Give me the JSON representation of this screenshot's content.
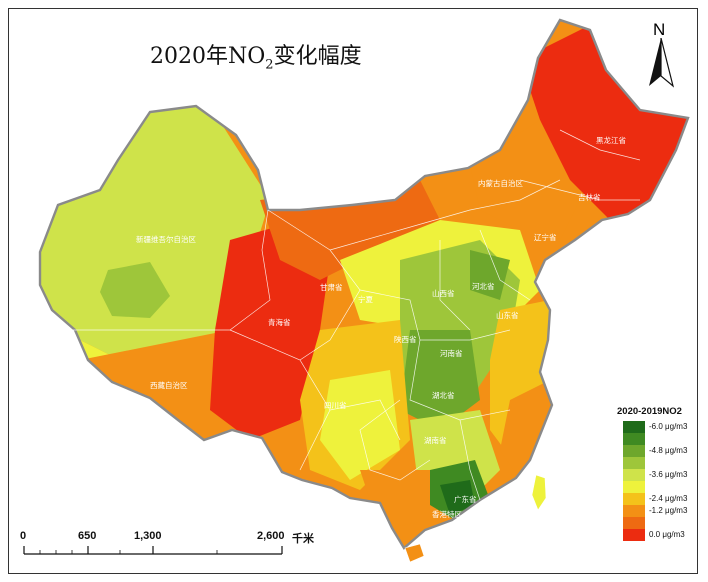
{
  "title_main": "2020年NO",
  "title_sub": "2",
  "title_tail": "变化幅度",
  "north_label": "N",
  "legend": {
    "title": "2020-2019NO2",
    "items": [
      {
        "label": "-6.0 μg/m3",
        "color": "#1f6b1a"
      },
      {
        "label": "",
        "color": "#3f8a22"
      },
      {
        "label": "-4.8 μg/m3",
        "color": "#6ea72c"
      },
      {
        "label": "",
        "color": "#9ec63a"
      },
      {
        "label": "-3.6 μg/m3",
        "color": "#cfe34a"
      },
      {
        "label": "",
        "color": "#eef23c"
      },
      {
        "label": "-2.4 μg/m3",
        "color": "#f4c21a"
      },
      {
        "label": "-1.2 μg/m3",
        "color": "#f39015"
      },
      {
        "label": "",
        "color": "#ee6a12"
      },
      {
        "label": "0.0 μg/m3",
        "color": "#ec2c10"
      }
    ]
  },
  "scale": {
    "labels": [
      "0",
      "650",
      "1,300",
      "2,600"
    ],
    "unit": "千米"
  },
  "provinces": {
    "xinjiang": "新疆维吾尔自治区",
    "xizang": "西藏自治区",
    "qinghai": "青海省",
    "gansu": "甘肃省",
    "neimenggu": "内蒙古自治区",
    "heilongjiang": "黑龙江省",
    "jilin": "吉林省",
    "liaoning": "辽宁省",
    "hebei": "河北省",
    "shandong": "山东省",
    "henan": "河南省",
    "hubei": "湖北省",
    "hunan": "湖南省",
    "guangdong": "广东省",
    "hongkong": "香港特区",
    "sichuan": "四川省",
    "shanxi": "山西省",
    "shaanxi": "陕西省",
    "ningxia": "宁夏"
  }
}
